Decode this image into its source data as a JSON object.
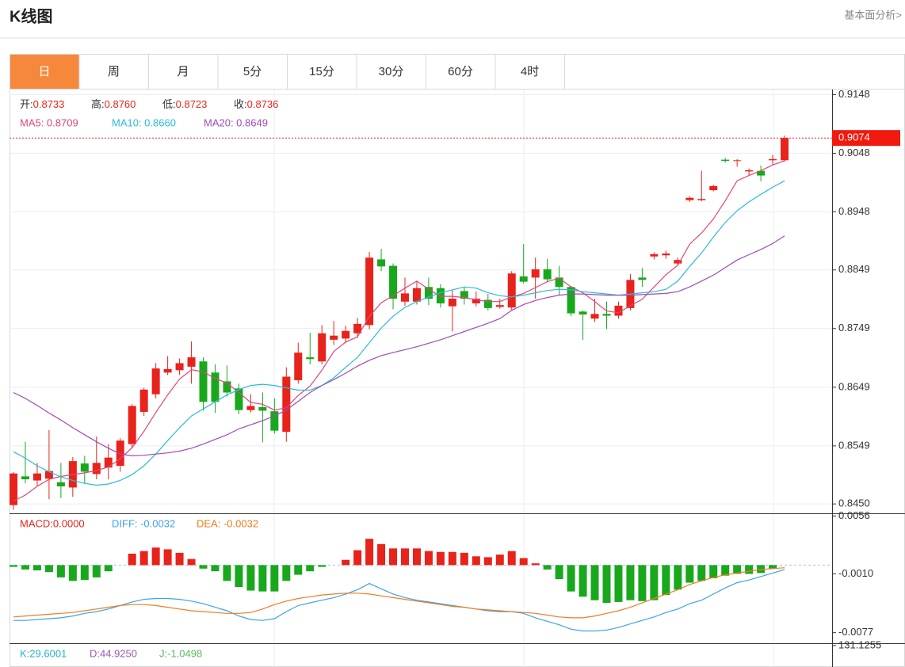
{
  "header": {
    "title": "K线图",
    "link": "基本面分析>"
  },
  "tabs": [
    "日",
    "周",
    "月",
    "5分",
    "15分",
    "30分",
    "60分",
    "4时"
  ],
  "active_tab": "日",
  "chart_data": [
    {
      "type": "candlestick",
      "up_color": "#e8231b",
      "down_color": "#18a81c",
      "readout": [
        {
          "label": "开:",
          "value": "0.8733"
        },
        {
          "label": "高:",
          "value": "0.8760"
        },
        {
          "label": "低:",
          "value": "0.8723"
        },
        {
          "label": "收:",
          "value": "0.8736"
        }
      ],
      "ylim": [
        0.8434,
        0.9158
      ],
      "yticks": [
        0.9148,
        0.9048,
        0.8948,
        0.8849,
        0.8749,
        0.8649,
        0.8549,
        {
          "value": 0.845,
          "label": "0.8450"
        }
      ],
      "grid": true,
      "last_price": 0.9074,
      "open": [
        0.8448,
        0.8497,
        0.849,
        0.8493,
        0.8487,
        0.8478,
        0.8519,
        0.8501,
        0.8512,
        0.8515,
        0.8552,
        0.8607,
        0.8637,
        0.8674,
        0.8678,
        0.8684,
        0.8693,
        0.8674,
        0.8659,
        0.8647,
        0.861,
        0.8615,
        0.8608,
        0.8573,
        0.8661,
        0.87,
        0.8693,
        0.873,
        0.8732,
        0.8741,
        0.8755,
        0.8867,
        0.8856,
        0.8795,
        0.8795,
        0.882,
        0.8818,
        0.8787,
        0.8813,
        0.8792,
        0.8798,
        0.8786,
        0.8785,
        0.8838,
        0.8836,
        0.885,
        0.8836,
        0.882,
        0.8778,
        0.8766,
        0.8774,
        0.8771,
        0.8784,
        0.8836,
        0.8872,
        0.8874,
        0.886,
        0.8968,
        0.8968,
        0.8985,
        0.9037,
        0.9035,
        0.9017,
        0.9018,
        0.9036,
        0.9036
      ],
      "high": [
        0.8504,
        0.8556,
        0.852,
        0.8576,
        0.852,
        0.853,
        0.8532,
        0.8565,
        0.8552,
        0.8562,
        0.862,
        0.8648,
        0.869,
        0.8702,
        0.8698,
        0.8727,
        0.87,
        0.8688,
        0.8686,
        0.8655,
        0.8637,
        0.864,
        0.863,
        0.8683,
        0.8725,
        0.8742,
        0.8755,
        0.8762,
        0.8754,
        0.8767,
        0.888,
        0.8885,
        0.886,
        0.8836,
        0.883,
        0.8836,
        0.8825,
        0.8815,
        0.882,
        0.8812,
        0.8808,
        0.88,
        0.8847,
        0.8893,
        0.887,
        0.8868,
        0.8856,
        0.8822,
        0.878,
        0.88,
        0.8795,
        0.8795,
        0.8842,
        0.8852,
        0.8879,
        0.8882,
        0.887,
        0.8975,
        0.9018,
        0.8994,
        0.904,
        0.9038,
        0.9022,
        0.9027,
        0.9045,
        0.9078
      ],
      "low": [
        0.844,
        0.8485,
        0.848,
        0.8458,
        0.846,
        0.8462,
        0.8485,
        0.8492,
        0.8492,
        0.8505,
        0.8545,
        0.86,
        0.863,
        0.867,
        0.867,
        0.8655,
        0.8609,
        0.8605,
        0.8633,
        0.8603,
        0.8606,
        0.8555,
        0.857,
        0.8556,
        0.8655,
        0.8688,
        0.8688,
        0.8721,
        0.8724,
        0.8733,
        0.8748,
        0.8847,
        0.8782,
        0.8788,
        0.879,
        0.8789,
        0.8785,
        0.8744,
        0.879,
        0.8787,
        0.878,
        0.8783,
        0.878,
        0.8826,
        0.88,
        0.8828,
        0.8806,
        0.877,
        0.873,
        0.876,
        0.8748,
        0.8766,
        0.878,
        0.882,
        0.8867,
        0.8868,
        0.8857,
        0.8965,
        0.8966,
        0.8983,
        0.9032,
        0.9025,
        0.901,
        0.9,
        0.9029,
        0.9034
      ],
      "close": [
        0.8502,
        0.8492,
        0.8502,
        0.8506,
        0.848,
        0.8523,
        0.8505,
        0.852,
        0.8529,
        0.8558,
        0.8617,
        0.8645,
        0.8681,
        0.868,
        0.869,
        0.87,
        0.8624,
        0.8624,
        0.864,
        0.861,
        0.8617,
        0.8609,
        0.8575,
        0.8667,
        0.8708,
        0.8697,
        0.8741,
        0.8737,
        0.8745,
        0.8757,
        0.887,
        0.8855,
        0.88,
        0.8809,
        0.8818,
        0.88,
        0.8792,
        0.88,
        0.88,
        0.88,
        0.8784,
        0.8789,
        0.8843,
        0.8829,
        0.885,
        0.8833,
        0.882,
        0.8775,
        0.8773,
        0.8774,
        0.8771,
        0.8788,
        0.8832,
        0.8832,
        0.8876,
        0.8877,
        0.8866,
        0.8972,
        0.897,
        0.8992,
        0.9035,
        0.9036,
        0.9019,
        0.901,
        0.9038,
        0.9074
      ],
      "series": [
        {
          "label": "MA5: 0.8709",
          "color": "#e0457b",
          "values": [
            0.8455,
            0.8465,
            0.848,
            0.8492,
            0.8497,
            0.85,
            0.8503,
            0.8507,
            0.8513,
            0.8527,
            0.8546,
            0.8574,
            0.8606,
            0.8636,
            0.8663,
            0.8679,
            0.8675,
            0.8664,
            0.8656,
            0.864,
            0.8623,
            0.862,
            0.861,
            0.8614,
            0.8635,
            0.8651,
            0.8678,
            0.871,
            0.8726,
            0.8735,
            0.877,
            0.8793,
            0.8805,
            0.8818,
            0.883,
            0.8816,
            0.8804,
            0.8804,
            0.8802,
            0.8798,
            0.8795,
            0.8795,
            0.8803,
            0.8809,
            0.8819,
            0.8829,
            0.8835,
            0.882,
            0.881,
            0.8795,
            0.8779,
            0.8776,
            0.8788,
            0.8799,
            0.882,
            0.8841,
            0.8857,
            0.8893,
            0.8912,
            0.8936,
            0.8967,
            0.9001,
            0.901,
            0.9018,
            0.9028,
            0.9035
          ]
        },
        {
          "label": "MA10: 0.8660",
          "color": "#2bbcd4",
          "values": [
            0.8539,
            0.8528,
            0.8515,
            0.8505,
            0.8496,
            0.849,
            0.8485,
            0.8482,
            0.8484,
            0.849,
            0.85,
            0.8515,
            0.8535,
            0.8558,
            0.858,
            0.86,
            0.8612,
            0.8624,
            0.8636,
            0.8645,
            0.8652,
            0.8654,
            0.8652,
            0.8648,
            0.8644,
            0.8644,
            0.8652,
            0.8665,
            0.8683,
            0.87,
            0.8725,
            0.875,
            0.877,
            0.8785,
            0.8795,
            0.8803,
            0.881,
            0.8815,
            0.882,
            0.8818,
            0.881,
            0.8805,
            0.8803,
            0.8806,
            0.881,
            0.8814,
            0.8816,
            0.8815,
            0.8812,
            0.881,
            0.8808,
            0.8806,
            0.8808,
            0.881,
            0.8812,
            0.8816,
            0.883,
            0.8855,
            0.8878,
            0.8905,
            0.893,
            0.895,
            0.8965,
            0.8978,
            0.899,
            0.9001
          ]
        },
        {
          "label": "MA20: 0.8649",
          "color": "#a04bb8",
          "values": [
            0.864,
            0.863,
            0.8618,
            0.8605,
            0.8593,
            0.858,
            0.8568,
            0.8556,
            0.8545,
            0.8535,
            0.8532,
            0.8533,
            0.8535,
            0.8537,
            0.854,
            0.8545,
            0.8552,
            0.856,
            0.8568,
            0.8578,
            0.8585,
            0.8592,
            0.86,
            0.861,
            0.8625,
            0.864,
            0.8652,
            0.8662,
            0.8673,
            0.8685,
            0.8695,
            0.8703,
            0.8708,
            0.8713,
            0.8718,
            0.8724,
            0.873,
            0.8737,
            0.8744,
            0.8751,
            0.8758,
            0.8766,
            0.878,
            0.879,
            0.8797,
            0.8802,
            0.8806,
            0.8808,
            0.8808,
            0.8807,
            0.8806,
            0.8806,
            0.8806,
            0.8807,
            0.8808,
            0.8809,
            0.8812,
            0.882,
            0.883,
            0.884,
            0.8853,
            0.8866,
            0.8875,
            0.8884,
            0.8894,
            0.8907
          ]
        }
      ]
    },
    {
      "type": "macd",
      "readout": {
        "text": "MACD:0.0000",
        "color": "#e8231b"
      },
      "ylim": [
        -0.0089,
        0.0059
      ],
      "yticks": [
        0.0056,
        {
          "value": -0.001,
          "label": "-0.0010"
        },
        -0.0077
      ],
      "histogram": [
        -0.0002,
        -0.0005,
        -0.0006,
        -0.0008,
        -0.0014,
        -0.0018,
        -0.0017,
        -0.0014,
        -0.0007,
        0,
        0.0013,
        0.0016,
        0.002,
        0.0018,
        0.0014,
        0.0007,
        -0.0004,
        -0.0007,
        -0.0018,
        -0.0025,
        -0.0029,
        -0.003,
        -0.003,
        -0.0018,
        -0.0011,
        -0.0007,
        -0.0002,
        0,
        0.0006,
        0.0017,
        0.003,
        0.0024,
        0.0019,
        0.0019,
        0.0019,
        0.0016,
        0.0015,
        0.0015,
        0.0014,
        0.001,
        0.0009,
        0.0012,
        0.0016,
        0.0008,
        0.0002,
        -0.0005,
        -0.0016,
        -0.003,
        -0.0036,
        -0.004,
        -0.0043,
        -0.0042,
        -0.004,
        -0.0041,
        -0.004,
        -0.0034,
        -0.0028,
        -0.002,
        -0.0018,
        -0.0015,
        -0.0012,
        -0.001,
        -0.001,
        -0.0009,
        -0.0004,
        0
      ],
      "series": [
        {
          "label": "DIFF: -0.0032",
          "color": "#3fa2e6",
          "values": [
            -0.0063,
            -0.0063,
            -0.0062,
            -0.0061,
            -0.006,
            -0.0058,
            -0.0055,
            -0.0053,
            -0.005,
            -0.0046,
            -0.0042,
            -0.0039,
            -0.0038,
            -0.0038,
            -0.0039,
            -0.0041,
            -0.0044,
            -0.0048,
            -0.0052,
            -0.0058,
            -0.0062,
            -0.0063,
            -0.0061,
            -0.0053,
            -0.0046,
            -0.0043,
            -0.004,
            -0.0037,
            -0.0033,
            -0.0028,
            -0.0021,
            -0.0027,
            -0.0033,
            -0.0037,
            -0.004,
            -0.0042,
            -0.0044,
            -0.0046,
            -0.0048,
            -0.005,
            -0.0052,
            -0.0053,
            -0.0053,
            -0.0055,
            -0.006,
            -0.0064,
            -0.0068,
            -0.0073,
            -0.0075,
            -0.0075,
            -0.0074,
            -0.0071,
            -0.0067,
            -0.0063,
            -0.0059,
            -0.0054,
            -0.005,
            -0.0044,
            -0.004,
            -0.0033,
            -0.0026,
            -0.002,
            -0.0017,
            -0.0013,
            -0.0009,
            -0.0005
          ]
        },
        {
          "label": "DEA: -0.0032",
          "color": "#ef7d1e",
          "values": [
            -0.0059,
            -0.0058,
            -0.0057,
            -0.0056,
            -0.0055,
            -0.0054,
            -0.0052,
            -0.005,
            -0.0048,
            -0.0046,
            -0.0045,
            -0.0045,
            -0.0046,
            -0.0048,
            -0.005,
            -0.0052,
            -0.0053,
            -0.0054,
            -0.0055,
            -0.0055,
            -0.0054,
            -0.005,
            -0.0045,
            -0.0041,
            -0.0038,
            -0.0036,
            -0.0034,
            -0.0033,
            -0.0032,
            -0.0032,
            -0.0033,
            -0.0035,
            -0.0037,
            -0.0039,
            -0.0041,
            -0.0043,
            -0.0045,
            -0.0047,
            -0.0048,
            -0.005,
            -0.0051,
            -0.0052,
            -0.0053,
            -0.0054,
            -0.0055,
            -0.0057,
            -0.0059,
            -0.006,
            -0.006,
            -0.0058,
            -0.0055,
            -0.0052,
            -0.0048,
            -0.0043,
            -0.0038,
            -0.0033,
            -0.0028,
            -0.0022,
            -0.0018,
            -0.0014,
            -0.0011,
            -0.0009,
            -0.0007,
            -0.0005,
            -0.0004,
            -0.0003
          ]
        }
      ]
    },
    {
      "type": "kdj",
      "readout": [
        {
          "text": "K:29.6001",
          "color": "#27b3c9"
        },
        {
          "text": "D:44.9250",
          "color": "#9b59b6"
        },
        {
          "text": "J:-1.0498",
          "color": "#5cb85c"
        }
      ],
      "yticks": [
        131.1255
      ]
    }
  ]
}
